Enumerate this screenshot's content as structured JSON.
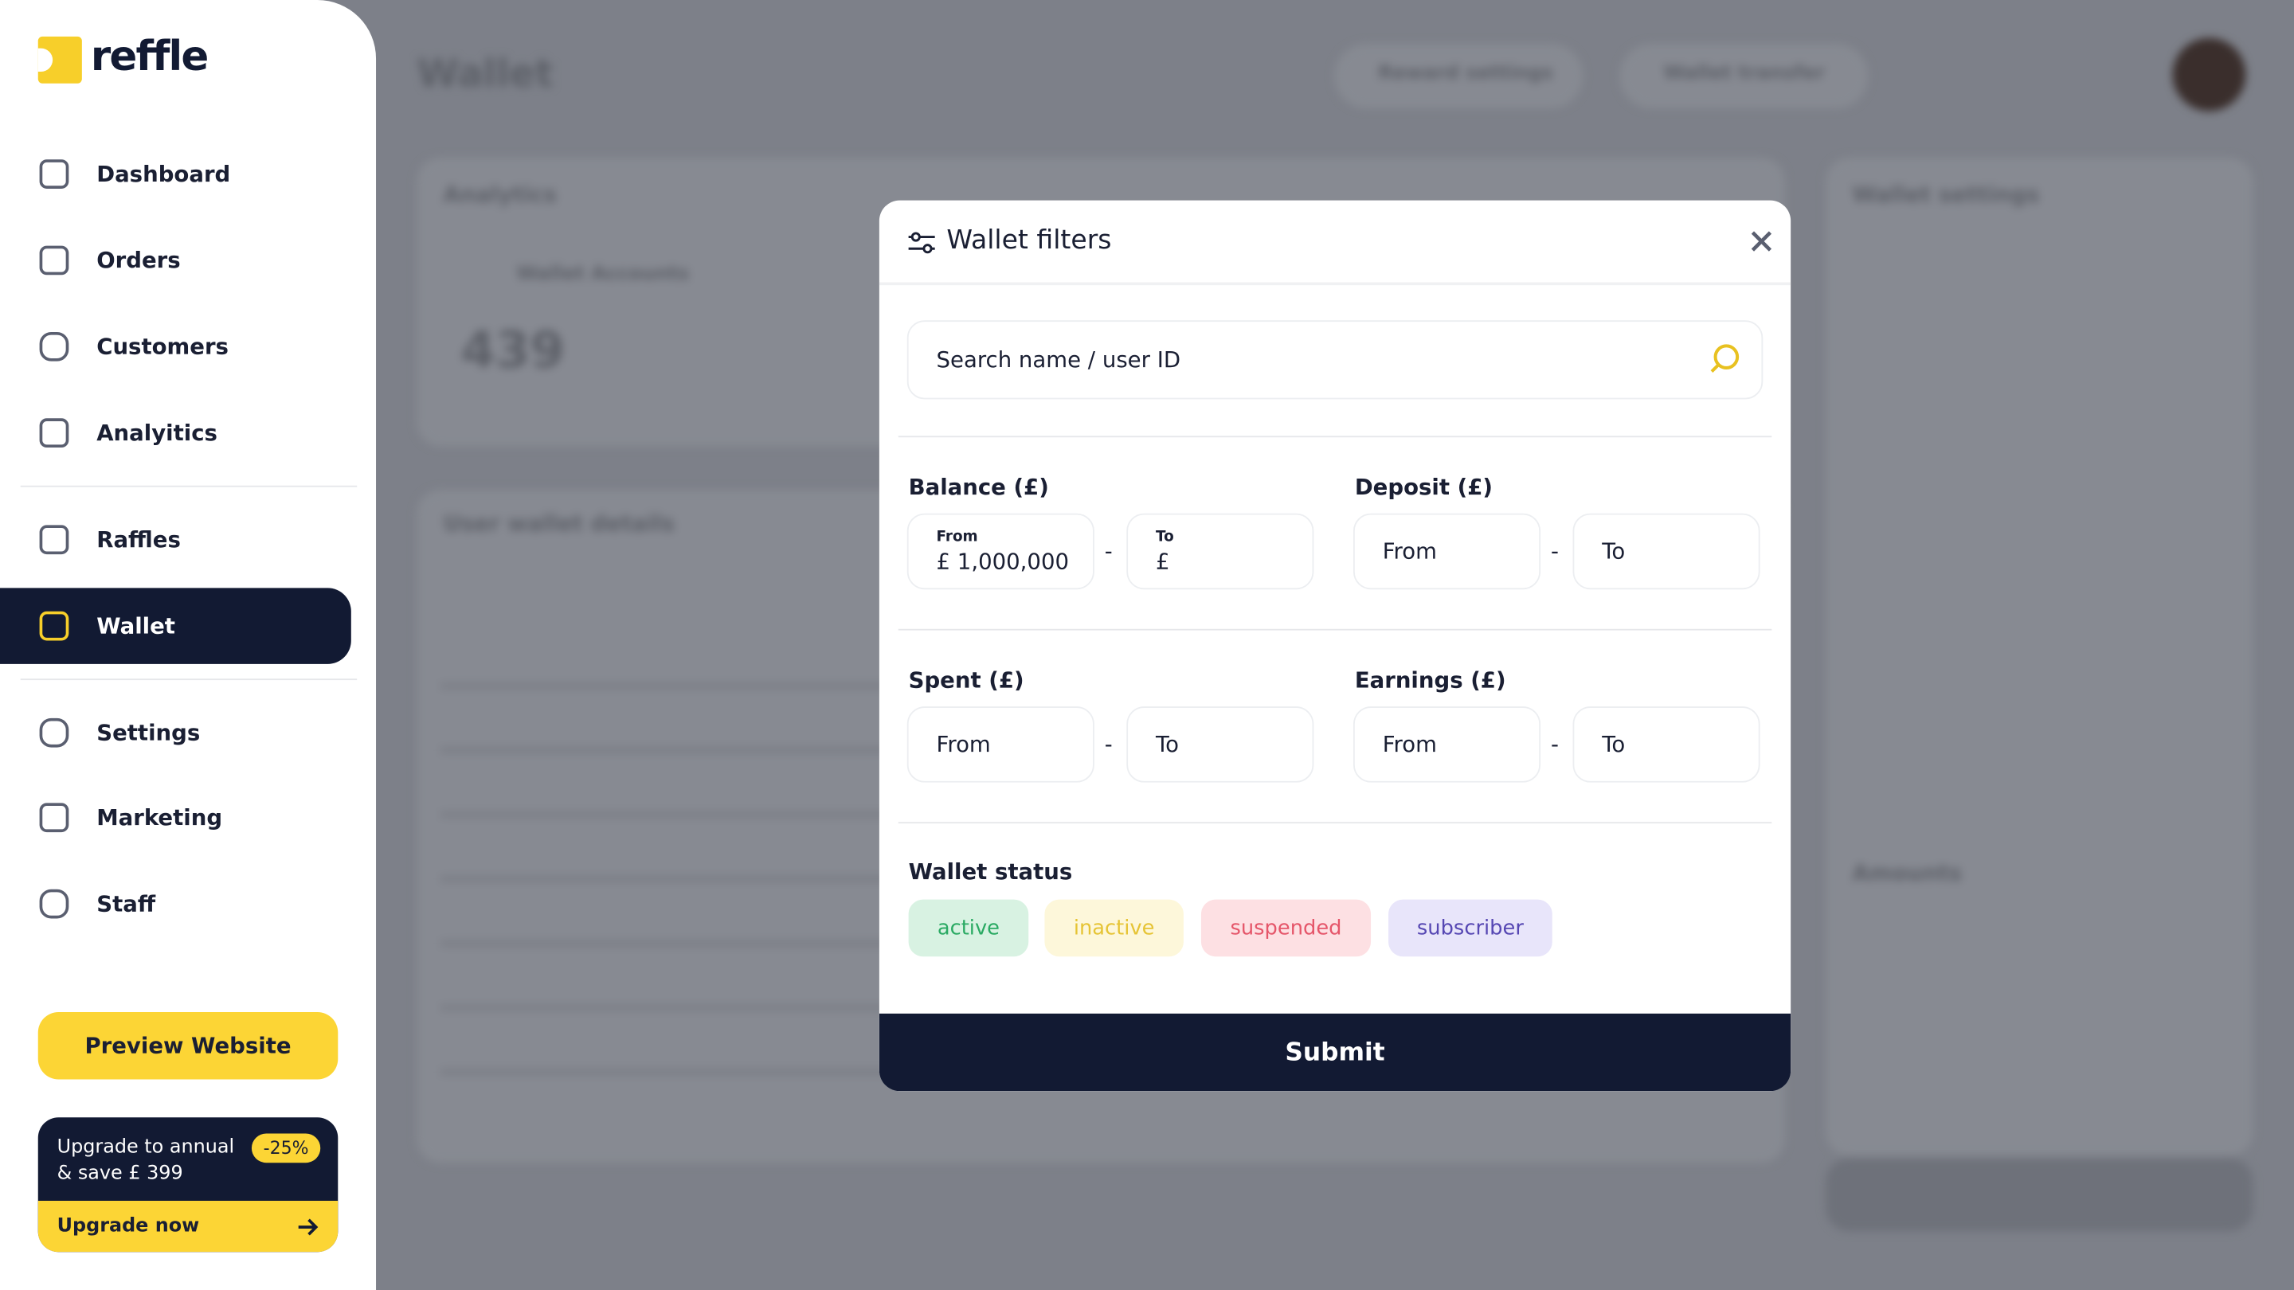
{
  "sidebar": {
    "logo": "reffle",
    "nav": [
      "Dashboard",
      "Orders",
      "Customers",
      "Analyitics",
      "Raffles",
      "Wallet",
      "Settings",
      "Marketing",
      "Staff"
    ],
    "active": "Wallet",
    "preview_button": "Preview Website",
    "upgrade": {
      "line1": "Upgrade to annual",
      "line2": "& save £ 399",
      "badge": "-25%",
      "cta": "Upgrade now"
    }
  },
  "background": {
    "page_title": "Wallet",
    "header_buttons": [
      "Reward settings",
      "Wallet transfer"
    ],
    "analytics_title": "Analytics",
    "stat_label": "Wallet Accounts",
    "stat_value": "439",
    "table_title": "User wallet details",
    "settings_title": "Wallet settings",
    "amounts_title": "Amounts"
  },
  "modal": {
    "title": "Wallet filters",
    "search_placeholder": "Search name / user ID",
    "separator": "-",
    "filters": [
      {
        "label": "Balance (£)",
        "from_label": "From",
        "from_value": "£ 1,000,000",
        "to_label": "To",
        "to_value": "£"
      },
      {
        "label": "Deposit (£)",
        "from": "From",
        "to": "To"
      },
      {
        "label": "Spent (£)",
        "from": "From",
        "to": "To"
      },
      {
        "label": "Earnings (£)",
        "from": "From",
        "to": "To"
      }
    ],
    "status_label": "Wallet status",
    "statuses": [
      "active",
      "inactive",
      "suspended",
      "subscriber"
    ],
    "submit": "Submit"
  }
}
